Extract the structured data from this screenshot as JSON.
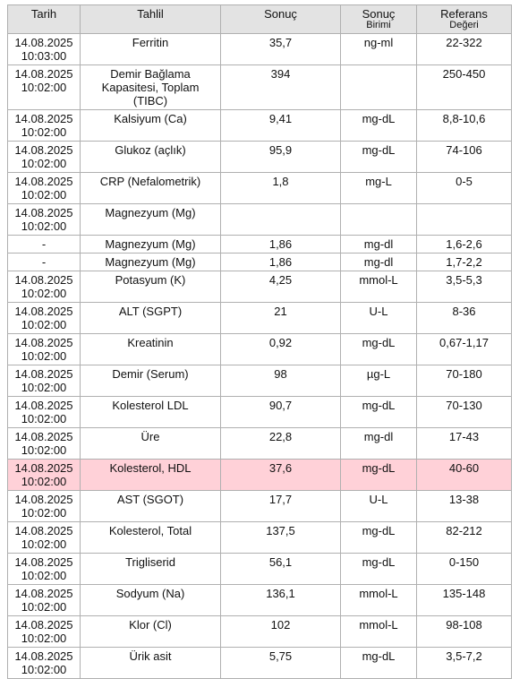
{
  "table": {
    "header": [
      [
        "Tarih"
      ],
      [
        "Tahlil"
      ],
      [
        "Sonuç"
      ],
      [
        "Sonuç",
        "Birimi"
      ],
      [
        "Referans",
        "Değeri"
      ]
    ],
    "rows": [
      {
        "date": "14.08.2025 10:03:00",
        "test": "Ferritin",
        "result": "35,7",
        "unit": "ng-ml",
        "reference": "22-322"
      },
      {
        "date": "14.08.2025 10:02:00",
        "test": "Demir Bağlama Kapasitesi, Toplam (TIBC)",
        "result": "394",
        "reference": "250-450"
      },
      {
        "date": "14.08.2025 10:02:00",
        "test": "Kalsiyum (Ca)",
        "result": "9,41",
        "unit": "mg-dL",
        "reference": "8,8-10,6"
      },
      {
        "date": "14.08.2025 10:02:00",
        "test": "Glukoz (açlık)",
        "result": "95,9",
        "unit": "mg-dL",
        "reference": "74-106"
      },
      {
        "date": "14.08.2025 10:02:00",
        "test": "CRP (Nefalometrik)",
        "result": "1,8",
        "unit": "mg-L",
        "reference": "0-5"
      },
      {
        "date": "14.08.2025 10:02:00",
        "test": "Magnezyum (Mg)"
      },
      {
        "date": "-",
        "test": "Magnezyum (Mg)",
        "result": "1,86",
        "unit": "mg-dl",
        "reference": "1,6-2,6"
      },
      {
        "date": "-",
        "test": "Magnezyum (Mg)",
        "result": "1,86",
        "unit": "mg-dl",
        "reference": "1,7-2,2"
      },
      {
        "date": "14.08.2025 10:02:00",
        "test": "Potasyum (K)",
        "result": "4,25",
        "unit": "mmol-L",
        "reference": "3,5-5,3"
      },
      {
        "date": "14.08.2025 10:02:00",
        "test": "ALT (SGPT)",
        "result": "21",
        "unit": "U-L",
        "reference": "8-36"
      },
      {
        "date": "14.08.2025 10:02:00",
        "test": "Kreatinin",
        "result": "0,92",
        "unit": "mg-dL",
        "reference": "0,67-1,17"
      },
      {
        "date": "14.08.2025 10:02:00",
        "test": "Demir (Serum)",
        "result": "98",
        "unit": "µg-L",
        "reference": "70-180"
      },
      {
        "date": "14.08.2025 10:02:00",
        "test": "Kolesterol LDL",
        "result": "90,7",
        "unit": "mg-dL",
        "reference": "70-130"
      },
      {
        "date": "14.08.2025 10:02:00",
        "test": "Üre",
        "result": "22,8",
        "unit": "mg-dl",
        "reference": "17-43"
      },
      {
        "date": "14.08.2025 10:02:00",
        "test": "Kolesterol, HDL",
        "result": "37,6",
        "unit": "mg-dL",
        "reference": "40-60",
        "highlight": true
      },
      {
        "date": "14.08.2025 10:02:00",
        "test": "AST (SGOT)",
        "result": "17,7",
        "unit": "U-L",
        "reference": "13-38"
      },
      {
        "date": "14.08.2025 10:02:00",
        "test": "Kolesterol, Total",
        "result": "137,5",
        "unit": "mg-dL",
        "reference": "82-212"
      },
      {
        "date": "14.08.2025 10:02:00",
        "test": "Trigliserid",
        "result": "56,1",
        "unit": "mg-dL",
        "reference": "0-150"
      },
      {
        "date": "14.08.2025 10:02:00",
        "test": "Sodyum (Na)",
        "result": "136,1",
        "unit": "mmol-L",
        "reference": "135-148"
      },
      {
        "date": "14.08.2025 10:02:00",
        "test": "Klor (Cl)",
        "result": "102",
        "unit": "mmol-L",
        "reference": "98-108"
      },
      {
        "date": "14.08.2025 10:02:00",
        "test": "Ürik asit",
        "result": "5,75",
        "unit": "mg-dL",
        "reference": "3,5-7,2"
      }
    ]
  }
}
